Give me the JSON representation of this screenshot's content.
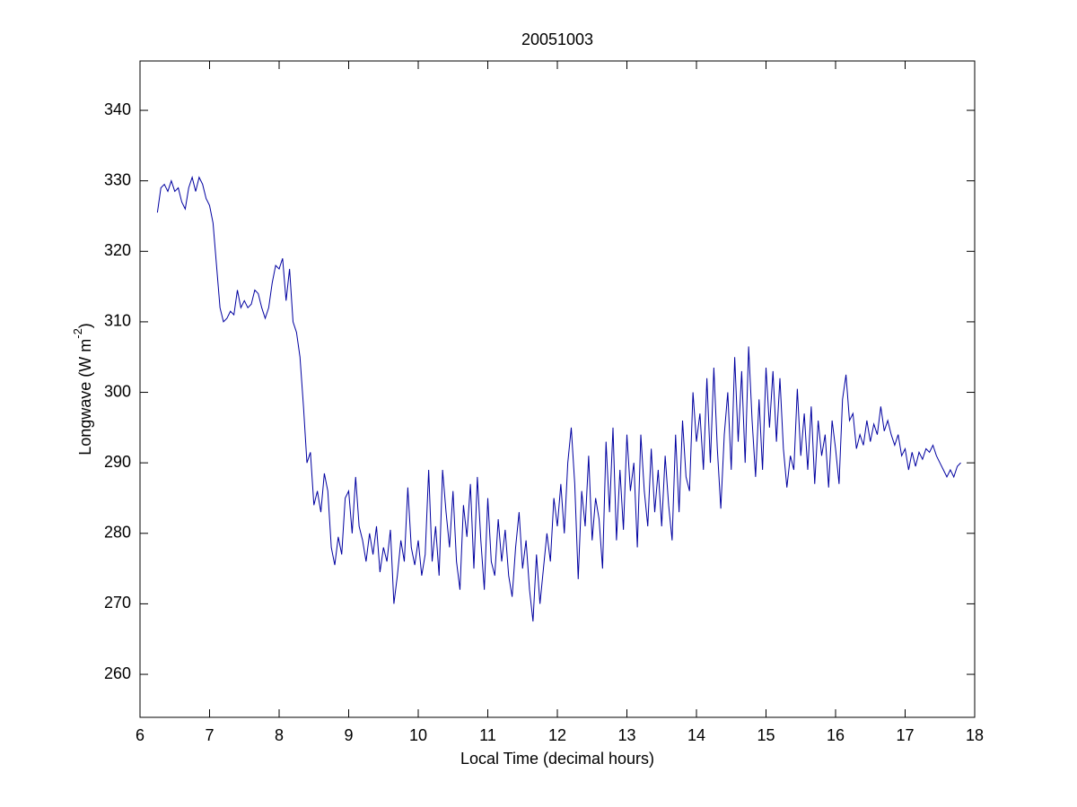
{
  "chart_data": {
    "type": "line",
    "title": "20051003",
    "xlabel": "Local Time (decimal hours)",
    "ylabel": {
      "text": "Longwave (W m",
      "superscript": "-2",
      "suffix": ")"
    },
    "color": "#0000a0",
    "xlim": [
      6,
      18
    ],
    "xticks": [
      6,
      7,
      8,
      9,
      10,
      11,
      12,
      13,
      14,
      15,
      16,
      17,
      18
    ],
    "ylim": [
      253.9,
      347
    ],
    "yticks": [
      260,
      270,
      280,
      290,
      300,
      310,
      320,
      330,
      340
    ],
    "grid": false,
    "x": [
      6.25,
      6.3,
      6.35,
      6.4,
      6.45,
      6.5,
      6.55,
      6.6,
      6.65,
      6.7,
      6.75,
      6.8,
      6.85,
      6.9,
      6.95,
      7,
      7.05,
      7.1,
      7.15,
      7.2,
      7.25,
      7.3,
      7.35,
      7.4,
      7.45,
      7.5,
      7.55,
      7.6,
      7.65,
      7.7,
      7.75,
      7.8,
      7.85,
      7.9,
      7.95,
      8,
      8.05,
      8.1,
      8.15,
      8.2,
      8.25,
      8.3,
      8.35,
      8.4,
      8.45,
      8.5,
      8.55,
      8.6,
      8.65,
      8.7,
      8.75,
      8.8,
      8.85,
      8.9,
      8.95,
      9,
      9.05,
      9.1,
      9.15,
      9.2,
      9.25,
      9.3,
      9.35,
      9.4,
      9.45,
      9.5,
      9.55,
      9.6,
      9.65,
      9.7,
      9.75,
      9.8,
      9.85,
      9.9,
      9.95,
      10,
      10.05,
      10.1,
      10.15,
      10.2,
      10.25,
      10.3,
      10.35,
      10.4,
      10.45,
      10.5,
      10.55,
      10.6,
      10.65,
      10.7,
      10.75,
      10.8,
      10.85,
      10.9,
      10.95,
      11,
      11.05,
      11.1,
      11.15,
      11.2,
      11.25,
      11.3,
      11.35,
      11.4,
      11.45,
      11.5,
      11.55,
      11.6,
      11.65,
      11.7,
      11.75,
      11.8,
      11.85,
      11.9,
      11.95,
      12,
      12.05,
      12.1,
      12.15,
      12.2,
      12.25,
      12.3,
      12.35,
      12.4,
      12.45,
      12.5,
      12.55,
      12.6,
      12.65,
      12.7,
      12.75,
      12.8,
      12.85,
      12.9,
      12.95,
      13,
      13.05,
      13.1,
      13.15,
      13.2,
      13.25,
      13.3,
      13.35,
      13.4,
      13.45,
      13.5,
      13.55,
      13.6,
      13.65,
      13.7,
      13.75,
      13.8,
      13.85,
      13.9,
      13.95,
      14,
      14.05,
      14.1,
      14.15,
      14.2,
      14.25,
      14.3,
      14.35,
      14.4,
      14.45,
      14.5,
      14.55,
      14.6,
      14.65,
      14.7,
      14.75,
      14.8,
      14.85,
      14.9,
      14.95,
      15,
      15.05,
      15.1,
      15.15,
      15.2,
      15.25,
      15.3,
      15.35,
      15.4,
      15.45,
      15.5,
      15.55,
      15.6,
      15.65,
      15.7,
      15.75,
      15.8,
      15.85,
      15.9,
      15.95,
      16,
      16.05,
      16.1,
      16.15,
      16.2,
      16.25,
      16.3,
      16.35,
      16.4,
      16.45,
      16.5,
      16.55,
      16.6,
      16.65,
      16.7,
      16.75,
      16.8,
      16.85,
      16.9,
      16.95,
      17,
      17.05,
      17.1,
      17.15,
      17.2,
      17.25,
      17.3,
      17.35,
      17.4,
      17.45,
      17.5,
      17.55,
      17.6,
      17.65,
      17.7,
      17.75,
      17.8
    ],
    "values": [
      325.5,
      329,
      329.5,
      328.5,
      330,
      328.5,
      329,
      327,
      326,
      329,
      330.5,
      328.5,
      330.5,
      329.5,
      327.5,
      326.5,
      324,
      318,
      312,
      310,
      310.5,
      311.5,
      311,
      314.5,
      312,
      313,
      312,
      312.5,
      314.5,
      314,
      312,
      310.5,
      312,
      315.5,
      318,
      317.5,
      319,
      313,
      317.5,
      310,
      308.5,
      305,
      298,
      290,
      291.5,
      284,
      286,
      283,
      288.5,
      286,
      278,
      275.5,
      279.5,
      277,
      285,
      286,
      280,
      288,
      281,
      279,
      276,
      280,
      277,
      281,
      274.5,
      278,
      276,
      280.5,
      270,
      274,
      279,
      276,
      286.5,
      278,
      275.5,
      279,
      274,
      277,
      289,
      276,
      281,
      274,
      289,
      283,
      278,
      286,
      276,
      272,
      284,
      279.5,
      287,
      275,
      288,
      279,
      272,
      285,
      276,
      274,
      282,
      276,
      280.5,
      274,
      271,
      278,
      283,
      275,
      279,
      272,
      267.5,
      277,
      270,
      275,
      280,
      276,
      285,
      281,
      287,
      280,
      290,
      295,
      287,
      273.5,
      286,
      281,
      291,
      279,
      285,
      282,
      275,
      293,
      283,
      295,
      279,
      289,
      280.5,
      294,
      286,
      290,
      278,
      294,
      286,
      281,
      292,
      283,
      289,
      281,
      291,
      284,
      279,
      294,
      283,
      296,
      288,
      286,
      300,
      293,
      297,
      289,
      302,
      290,
      303.5,
      292,
      283.5,
      294,
      300,
      289,
      305,
      293,
      303,
      290,
      306.5,
      296,
      288,
      299,
      289,
      303.5,
      295,
      303,
      293,
      302,
      292,
      286.5,
      291,
      289,
      300.5,
      291,
      297,
      289,
      298,
      287,
      296,
      291,
      294,
      286.5,
      296,
      292,
      287,
      299,
      302.5,
      296,
      297,
      292,
      294,
      292.5,
      296,
      293,
      295.5,
      294,
      298,
      294.5,
      296,
      294,
      292.5,
      294,
      291,
      292,
      289,
      291.5,
      289.5,
      291.5,
      290.5,
      292,
      291.5,
      292.5,
      291,
      290,
      289,
      288,
      289,
      288,
      289.5,
      290
    ]
  }
}
